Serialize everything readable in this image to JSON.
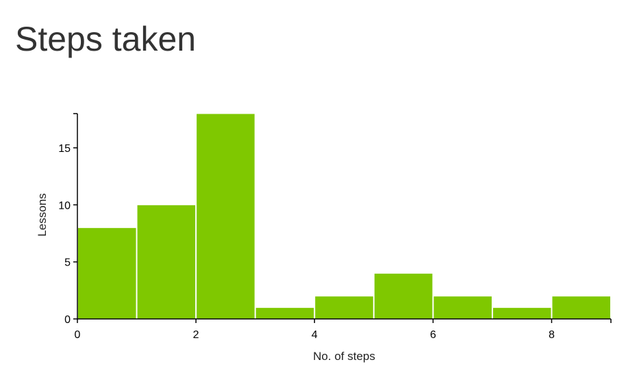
{
  "title": "Steps taken",
  "colors": {
    "bar": "#7fc800",
    "axis": "#000000",
    "bar_border": "#ffffff"
  },
  "chart_data": {
    "type": "bar",
    "title": "Steps taken",
    "bins": [
      [
        0,
        1
      ],
      [
        1,
        2
      ],
      [
        2,
        3
      ],
      [
        3,
        4
      ],
      [
        4,
        5
      ],
      [
        5,
        6
      ],
      [
        6,
        7
      ],
      [
        7,
        8
      ],
      [
        8,
        9
      ]
    ],
    "values": [
      8,
      10,
      18,
      1,
      2,
      4,
      2,
      1,
      2
    ],
    "xlabel": "No. of steps",
    "ylabel": "Lessons",
    "xlim": [
      0,
      9
    ],
    "ylim": [
      0,
      18
    ],
    "xticks": [
      0,
      2,
      4,
      6,
      8
    ],
    "yticks": [
      0,
      5,
      10,
      15
    ],
    "grid": false
  }
}
